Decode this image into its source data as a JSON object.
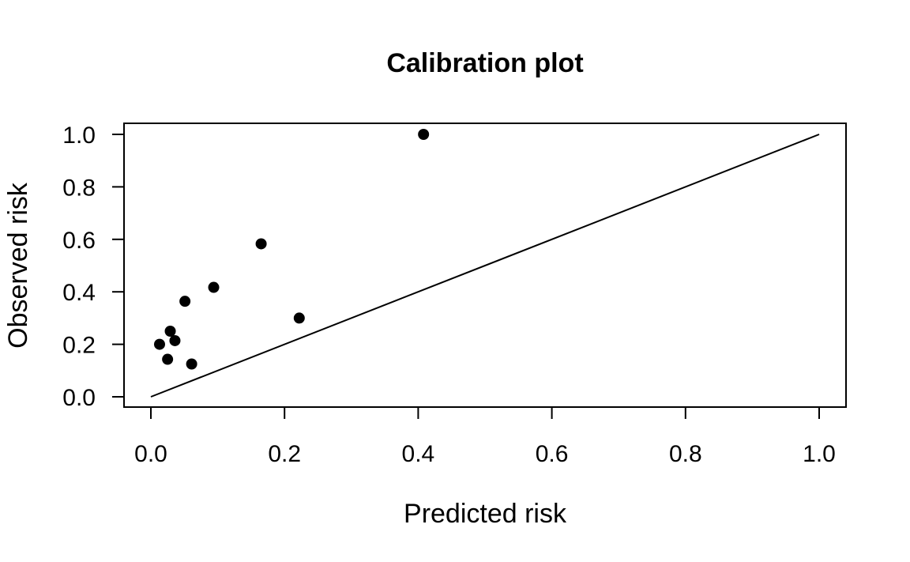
{
  "chart_data": {
    "type": "scatter",
    "title": "Calibration plot",
    "xlabel": "Predicted risk",
    "ylabel": "Observed risk",
    "xlim": [
      0.0,
      1.0
    ],
    "ylim": [
      0.0,
      1.0
    ],
    "xticks": [
      "0.0",
      "0.2",
      "0.4",
      "0.6",
      "0.8",
      "1.0"
    ],
    "yticks": [
      "0.0",
      "0.2",
      "0.4",
      "0.6",
      "0.8",
      "1.0"
    ],
    "grid": false,
    "reference_line": {
      "x": [
        0.0,
        1.0
      ],
      "y": [
        0.0,
        1.0
      ]
    },
    "points": [
      {
        "x": 0.013,
        "y": 0.2
      },
      {
        "x": 0.025,
        "y": 0.143
      },
      {
        "x": 0.029,
        "y": 0.25
      },
      {
        "x": 0.036,
        "y": 0.214
      },
      {
        "x": 0.051,
        "y": 0.364
      },
      {
        "x": 0.061,
        "y": 0.125
      },
      {
        "x": 0.094,
        "y": 0.417
      },
      {
        "x": 0.165,
        "y": 0.583
      },
      {
        "x": 0.222,
        "y": 0.3
      },
      {
        "x": 0.408,
        "y": 1.0
      }
    ],
    "colors": {
      "points": "#000000",
      "line": "#000000",
      "frame": "#000000"
    }
  }
}
